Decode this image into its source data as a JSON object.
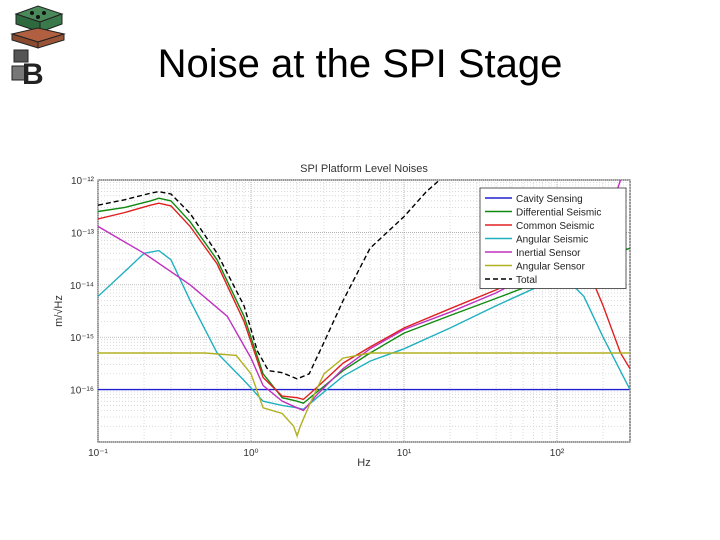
{
  "slide": {
    "title": "Noise at the SPI Stage"
  },
  "logo": {
    "icon": "seismic-platform-logo-icon",
    "glyph": "B"
  },
  "chart_data": {
    "type": "line",
    "title": "SPI Platform Level Noises",
    "xlabel": "Hz",
    "ylabel": "m/√Hz",
    "xscale": "log",
    "yscale": "log",
    "xlim": [
      0.1,
      300
    ],
    "ylim": [
      1e-17,
      1e-12
    ],
    "x_tick_labels": [
      "10⁻¹",
      "10⁰",
      "10¹",
      "10²"
    ],
    "y_tick_labels": [
      "10⁻¹²",
      "10⁻¹³",
      "10⁻¹⁴",
      "10⁻¹⁵",
      "10⁻¹⁶"
    ],
    "grid": "on",
    "legend_position": "top-right",
    "series": [
      {
        "name": "Cavity Sensing",
        "color": "#2020d0",
        "dash": "solid",
        "x": [
          0.1,
          300
        ],
        "y": [
          1e-16,
          1e-16
        ]
      },
      {
        "name": "Differential Seismic",
        "color": "#108a10",
        "dash": "solid",
        "x": [
          0.1,
          0.15,
          0.22,
          0.25,
          0.3,
          0.4,
          0.6,
          0.9,
          1.2,
          1.6,
          2.0,
          2.2,
          2.7,
          4,
          6,
          10,
          20,
          40,
          80,
          150,
          300
        ],
        "y": [
          2.5e-13,
          3e-13,
          4e-13,
          4.5e-13,
          4e-13,
          1.6e-13,
          3e-14,
          2.5e-15,
          2e-16,
          7e-17,
          6e-17,
          5.5e-17,
          9e-17,
          2.3e-16,
          5e-16,
          1.2e-15,
          2.6e-15,
          5.5e-15,
          1.2e-14,
          2.5e-14,
          5e-14
        ]
      },
      {
        "name": "Common Seismic",
        "color": "#e02020",
        "dash": "solid",
        "x": [
          0.1,
          0.15,
          0.22,
          0.25,
          0.3,
          0.4,
          0.6,
          0.9,
          1.2,
          1.6,
          2.0,
          2.2,
          2.7,
          4,
          6,
          10,
          20,
          40,
          80,
          150,
          200,
          260,
          300
        ],
        "y": [
          1.8e-13,
          2.4e-13,
          3.3e-13,
          3.6e-13,
          3.2e-13,
          1.3e-13,
          2.5e-14,
          2e-15,
          1.7e-16,
          7.5e-17,
          7e-17,
          6.5e-17,
          1.1e-16,
          3.2e-16,
          6.5e-16,
          1.5e-15,
          3.5e-15,
          8e-15,
          2e-14,
          3e-14,
          4e-15,
          5e-16,
          2.5e-16
        ]
      },
      {
        "name": "Angular Seismic",
        "color": "#20b0c0",
        "dash": "solid",
        "x": [
          0.1,
          0.15,
          0.2,
          0.25,
          0.3,
          0.4,
          0.6,
          0.9,
          1.2,
          1.6,
          2.0,
          2.2,
          2.7,
          4,
          6,
          10,
          20,
          40,
          80,
          110,
          150,
          200,
          300
        ],
        "y": [
          6e-15,
          1.8e-14,
          4e-14,
          4.5e-14,
          3e-14,
          5e-15,
          5e-16,
          1.5e-16,
          6e-17,
          5e-17,
          4.5e-17,
          4.2e-17,
          7e-17,
          1.8e-16,
          3.5e-16,
          6e-16,
          1.5e-15,
          4e-15,
          1e-14,
          1.5e-14,
          6e-15,
          1e-15,
          1e-16
        ]
      },
      {
        "name": "Inertial Sensor",
        "color": "#c030c0",
        "dash": "solid",
        "x": [
          0.1,
          0.2,
          0.4,
          0.7,
          1.0,
          1.2,
          1.6,
          2.0,
          2.2,
          2.7,
          4,
          6,
          10,
          20,
          40,
          80,
          150,
          200,
          260
        ],
        "y": [
          1.3e-13,
          4e-14,
          1e-14,
          2.5e-15,
          4e-16,
          1.2e-16,
          6e-17,
          4.5e-17,
          4e-17,
          8e-17,
          2.5e-16,
          6e-16,
          1.4e-15,
          3e-15,
          7e-15,
          2e-14,
          5e-14,
          1e-13,
          1e-12
        ]
      },
      {
        "name": "Angular Sensor",
        "color": "#b0b020",
        "dash": "solid",
        "x": [
          0.1,
          0.5,
          0.8,
          1.0,
          1.2,
          1.6,
          1.9,
          2.0,
          2.1,
          2.4,
          3,
          4,
          6,
          10,
          300
        ],
        "y": [
          5e-16,
          5e-16,
          4.5e-16,
          2e-16,
          4.5e-17,
          3.5e-17,
          2e-17,
          1.3e-17,
          2e-17,
          5e-17,
          2e-16,
          4e-16,
          5e-16,
          5e-16,
          5e-16
        ]
      },
      {
        "name": "Total",
        "color": "#000000",
        "dash": "5,3",
        "x": [
          0.1,
          0.15,
          0.22,
          0.25,
          0.3,
          0.4,
          0.6,
          0.9,
          1.1,
          1.3,
          1.6,
          2.0,
          2.4,
          3,
          4,
          6,
          10,
          14,
          20,
          300
        ],
        "y": [
          3.3e-13,
          4.2e-13,
          5.6e-13,
          6e-13,
          5.4e-13,
          2.3e-13,
          4e-14,
          4e-15,
          5.5e-16,
          2.3e-16,
          2.1e-16,
          1.6e-16,
          2e-16,
          8e-16,
          5e-15,
          5e-14,
          2e-13,
          6e-13,
          1.5e-12,
          1.5e-12
        ]
      }
    ]
  }
}
